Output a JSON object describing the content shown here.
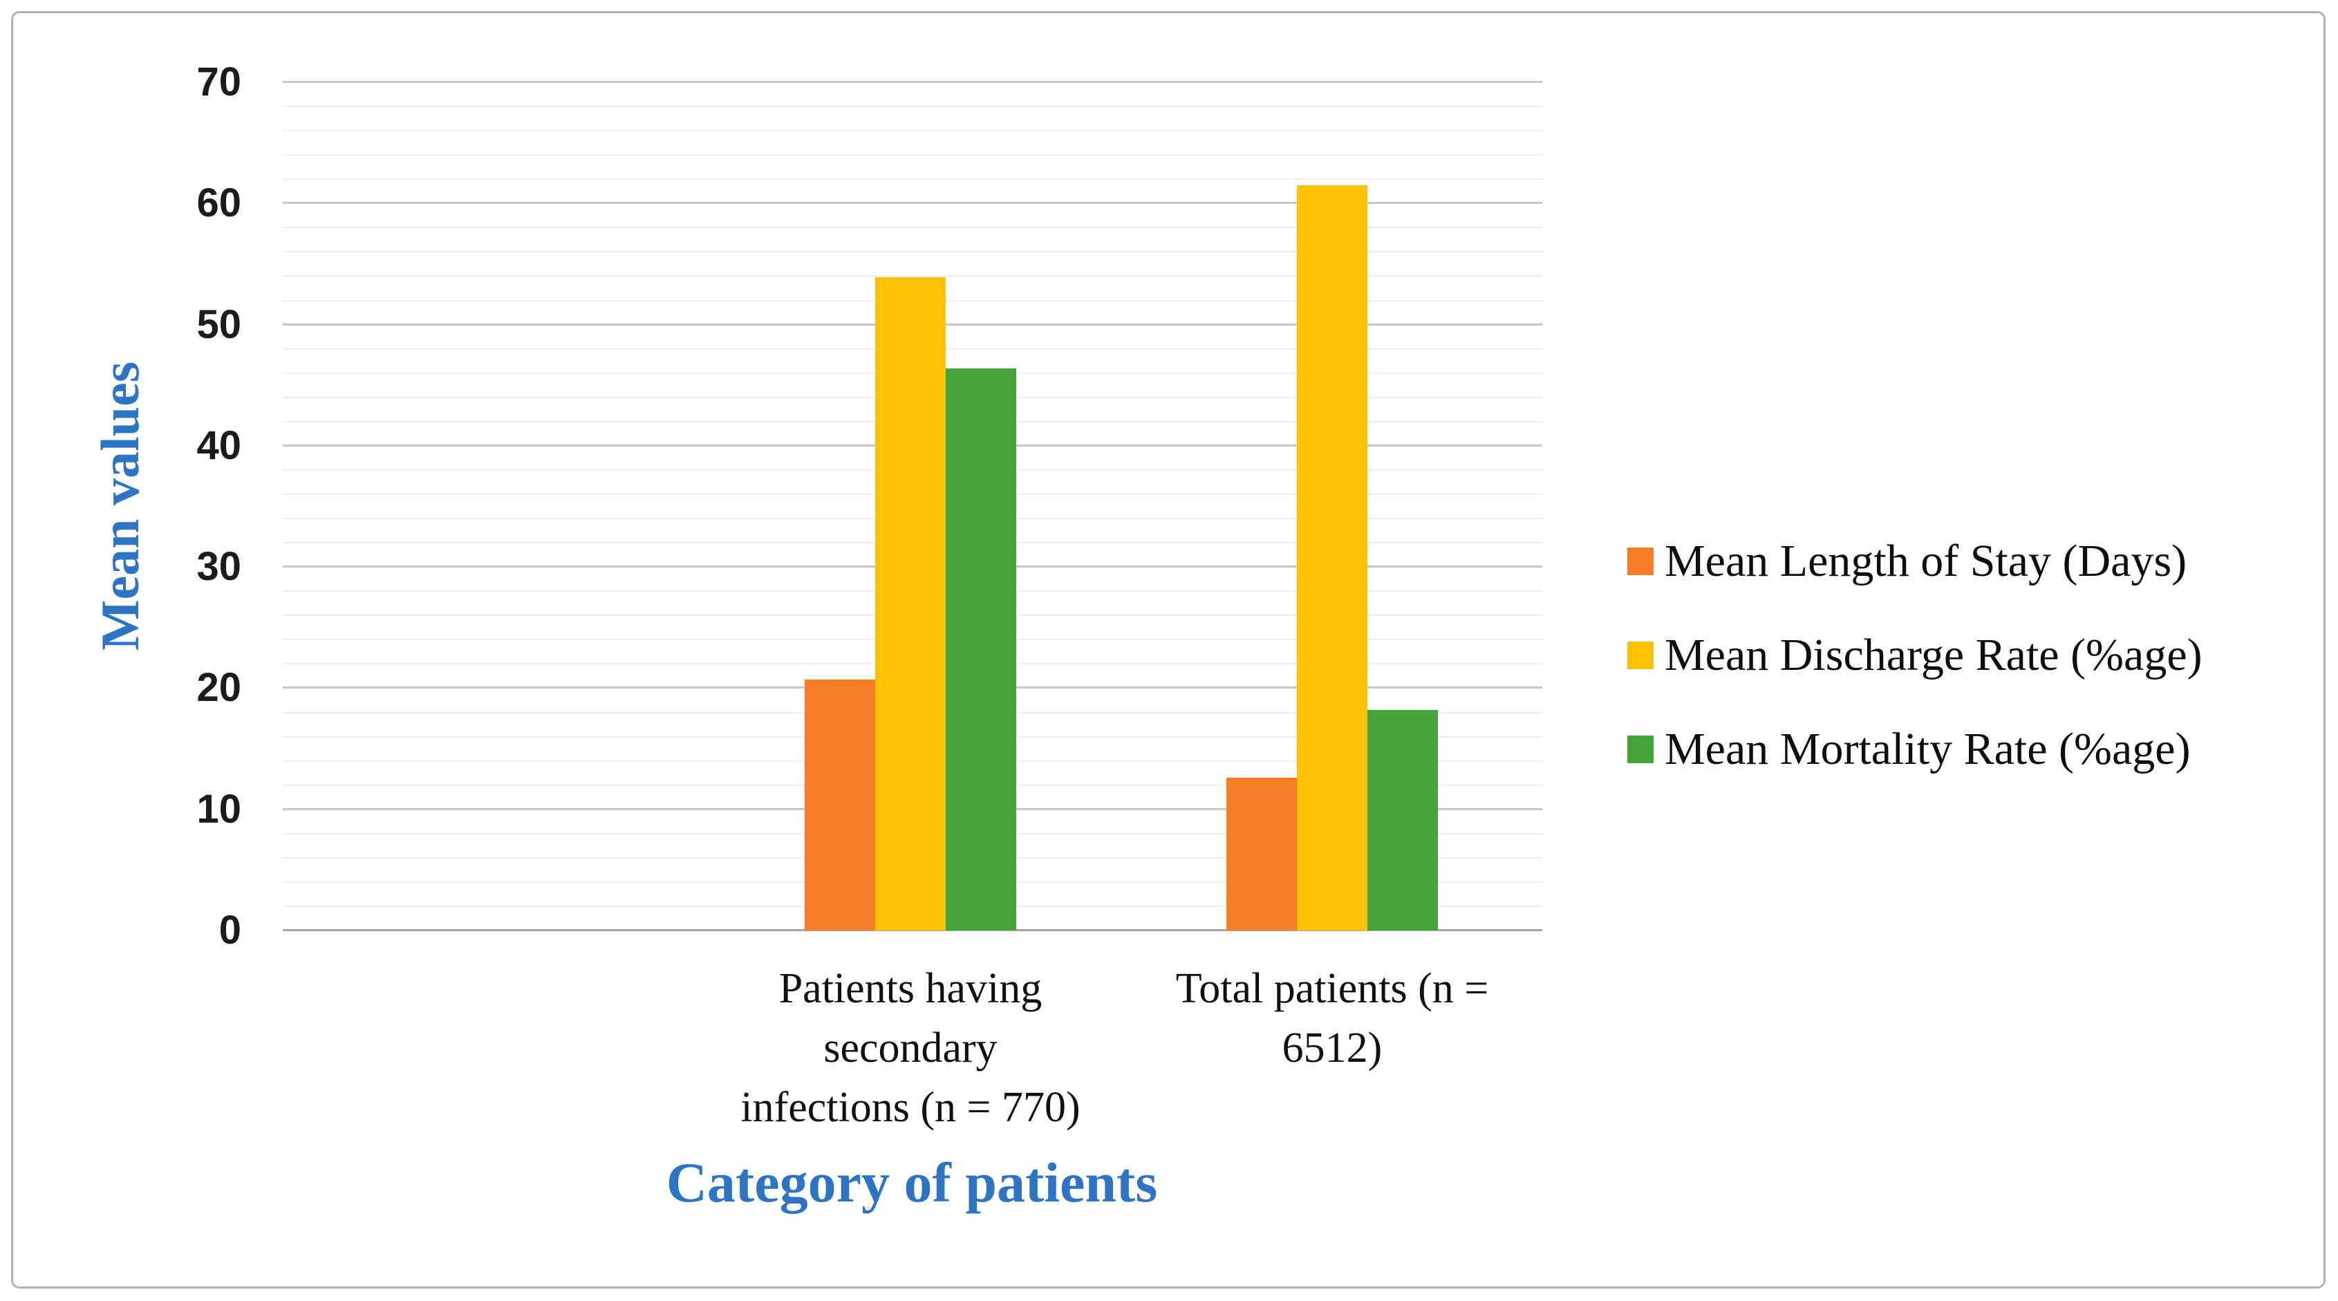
{
  "figure": {
    "background": "#ffffff",
    "border_color": "#b2b2b2"
  },
  "chart_data": {
    "type": "bar",
    "title": "",
    "categories": [
      {
        "label": "Patients having secondary infections (n = 770)",
        "lines": [
          "Patients having",
          "secondary",
          "infections (n = 770)"
        ]
      },
      {
        "label": "Total patients (n = 6512)",
        "lines": [
          "Total patients (n =",
          "6512)"
        ]
      }
    ],
    "series": [
      {
        "name": "Mean Length of Stay (Days)",
        "color": "#f97d27",
        "values": [
          20.7,
          12.6
        ]
      },
      {
        "name": "Mean Discharge Rate (%age)",
        "color": "#ffc206",
        "values": [
          53.9,
          61.5
        ]
      },
      {
        "name": "Mean Mortality Rate (%age)",
        "color": "#43a438",
        "values": [
          46.4,
          18.2
        ]
      }
    ],
    "xlabel": "Category of patients",
    "ylabel": "Mean values",
    "ylim": [
      0,
      70
    ],
    "yticks": [
      0,
      10,
      20,
      30,
      40,
      50,
      60,
      70
    ],
    "ytick_major_step": 10,
    "ytick_minor_step": 2,
    "grid": true,
    "legend_position": "right",
    "axis_title_color": "#2e74c4",
    "gridline_major_color": "#c7c7c7",
    "gridline_minor_color": "#eeeeee"
  }
}
